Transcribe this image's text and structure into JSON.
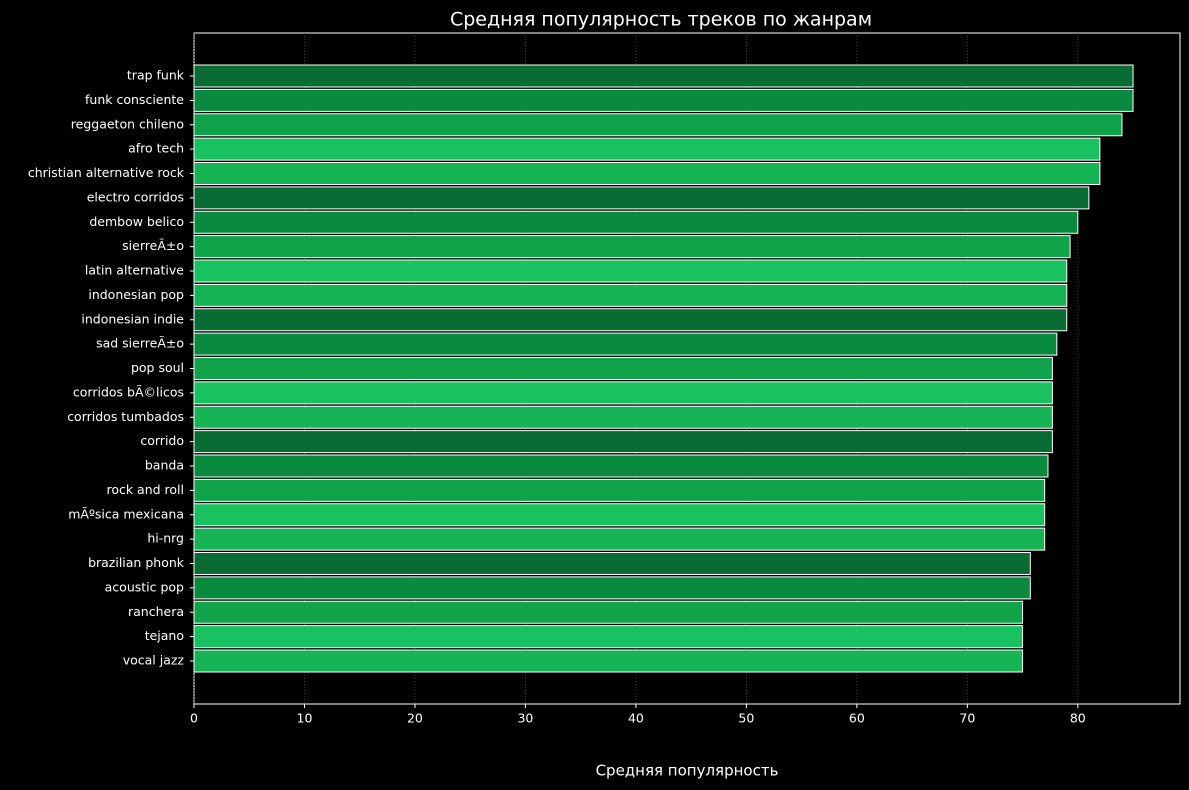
{
  "chart_data": {
    "type": "barh",
    "title": "Средняя популярность треков по жанрам",
    "xlabel": "Средняя популярность",
    "categories": [
      "trap funk",
      "funk consciente",
      "reggaeton chileno",
      "afro tech",
      "christian alternative rock",
      "electro corridos",
      "dembow belico",
      "sierreÃ±o",
      "latin alternative",
      "indonesian pop",
      "indonesian indie",
      "sad sierreÃ±o",
      "pop soul",
      "corridos bÃ©licos",
      "corridos tumbados",
      "corrido",
      "banda",
      "rock and roll",
      "mÃºsica mexicana",
      "hi-nrg",
      "brazilian phonk",
      "acoustic pop",
      "ranchera",
      "tejano",
      "vocal jazz"
    ],
    "values": [
      85.0,
      85.0,
      84.0,
      82.0,
      82.0,
      81.0,
      80.0,
      79.3,
      79.0,
      79.0,
      79.0,
      78.1,
      77.7,
      77.7,
      77.7,
      77.7,
      77.3,
      77.0,
      77.0,
      77.0,
      75.7,
      75.7,
      75.0,
      75.0,
      75.0
    ],
    "colors": [
      "#086c33",
      "#0a8a3f",
      "#10a34a",
      "#18c25e",
      "#17b456"
    ],
    "xlim": [
      0,
      89.25
    ],
    "xticks": [
      0,
      10,
      20,
      30,
      40,
      50,
      60,
      70,
      80
    ],
    "grid": true
  }
}
